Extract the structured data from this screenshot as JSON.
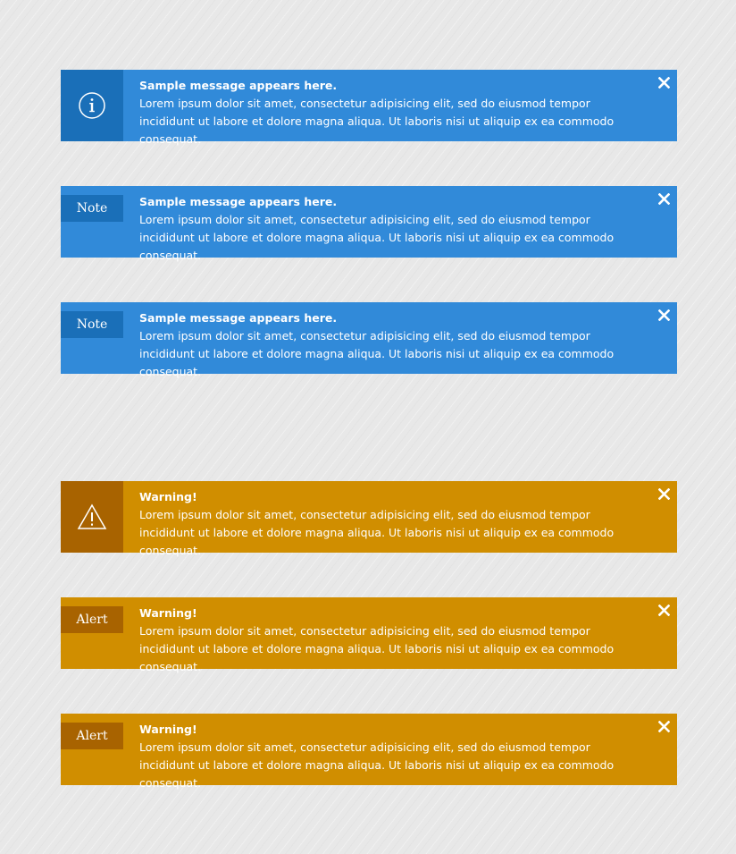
{
  "alerts": [
    {
      "variant": "info",
      "leading": "icon",
      "icon": "info-circle-icon",
      "tag": "",
      "title": "Sample message appears here.",
      "body": "Lorem ipsum dolor sit amet, consectetur adipisicing elit, sed do eiusmod tempor incididunt ut labore et dolore magna aliqua. Ut laboris nisi ut aliquip ex ea commodo consequat."
    },
    {
      "variant": "info",
      "leading": "tag",
      "icon": "",
      "tag": "Note",
      "title": "Sample message appears here.",
      "body": "Lorem ipsum dolor sit amet, consectetur adipisicing elit, sed do eiusmod tempor incididunt ut labore et dolore magna aliqua. Ut laboris nisi ut aliquip ex ea commodo consequat."
    },
    {
      "variant": "info",
      "leading": "tag",
      "icon": "",
      "tag": "Note",
      "title": "Sample message appears here.",
      "body": "Lorem ipsum dolor sit amet, consectetur adipisicing elit, sed do eiusmod tempor incididunt ut labore et dolore magna aliqua. Ut laboris nisi ut aliquip ex ea commodo consequat."
    },
    {
      "variant": "warning",
      "leading": "icon",
      "icon": "warning-triangle-icon",
      "tag": "",
      "title": "Warning!",
      "body": "Lorem ipsum dolor sit amet, consectetur adipisicing elit, sed do eiusmod tempor incididunt ut labore et dolore magna aliqua. Ut laboris nisi ut aliquip ex ea commodo consequat."
    },
    {
      "variant": "warning",
      "leading": "tag",
      "icon": "",
      "tag": "Alert",
      "title": "Warning!",
      "body": "Lorem ipsum dolor sit amet, consectetur adipisicing elit, sed do eiusmod tempor incididunt ut labore et dolore magna aliqua. Ut laboris nisi ut aliquip ex ea commodo consequat."
    },
    {
      "variant": "warning",
      "leading": "tag",
      "icon": "",
      "tag": "Alert",
      "title": "Warning!",
      "body": "Lorem ipsum dolor sit amet, consectetur adipisicing elit, sed do eiusmod tempor incididunt ut labore et dolore magna aliqua. Ut laboris nisi ut aliquip ex ea commodo consequat."
    }
  ],
  "colors": {
    "info": "#318ad9",
    "info_dark": "#1a6fb8",
    "warning": "#d08e00",
    "warning_dark": "#a86300",
    "background": "#e8e8e8"
  },
  "close_icon": "close-icon"
}
